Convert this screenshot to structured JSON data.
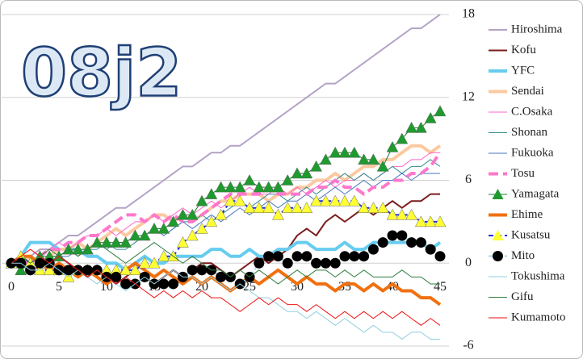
{
  "chart_data": {
    "type": "line",
    "title": "08j2",
    "x": [
      0,
      1,
      2,
      3,
      4,
      5,
      6,
      7,
      8,
      9,
      10,
      11,
      12,
      13,
      14,
      15,
      16,
      17,
      18,
      19,
      20,
      21,
      22,
      23,
      24,
      25,
      26,
      27,
      28,
      29,
      30,
      31,
      32,
      33,
      34,
      35,
      36,
      37,
      38,
      39,
      40,
      41,
      42,
      43,
      44,
      45
    ],
    "xlim": [
      0,
      45
    ],
    "xticks": [
      0,
      5,
      10,
      15,
      20,
      25,
      30,
      35,
      40,
      45
    ],
    "ylim": [
      -6,
      18
    ],
    "yticks": [
      -6,
      0,
      6,
      12,
      18
    ],
    "grid": true,
    "legend": "right",
    "series": [
      {
        "name": "Hiroshima",
        "color": "#b3a2c7",
        "width": 2,
        "values": [
          0,
          0,
          0.5,
          1,
          1,
          1.5,
          2,
          2,
          2.5,
          3,
          3.5,
          4,
          4,
          4.5,
          5,
          5.5,
          6,
          6.5,
          7,
          7,
          7.5,
          8,
          8,
          8.5,
          8.5,
          9,
          9.5,
          10,
          10.5,
          11,
          11.5,
          12,
          12.5,
          13,
          13,
          13.5,
          14,
          14.5,
          15,
          15.5,
          16,
          16.5,
          17,
          17,
          17.5,
          18
        ]
      },
      {
        "name": "Kofu",
        "color": "#7b1c1c",
        "width": 2,
        "values": [
          0,
          0.5,
          0,
          -0.5,
          0,
          0.5,
          0,
          -0.5,
          -1,
          -0.5,
          -1,
          -1.5,
          -1,
          -0.5,
          -1,
          -1.5,
          -1,
          -0.5,
          -1,
          -0.5,
          0,
          0,
          -0.5,
          -1,
          -0.5,
          0,
          0.5,
          0,
          0.5,
          1,
          2,
          2.5,
          2,
          3,
          3.5,
          3,
          3.5,
          4,
          3.5,
          4,
          4.5,
          4,
          4.5,
          4.5,
          5,
          5
        ]
      },
      {
        "name": "YFC",
        "color": "#66ccf0",
        "width": 4,
        "values": [
          0,
          0.5,
          1.5,
          1.5,
          1.5,
          1,
          1,
          1,
          0.5,
          0.5,
          0,
          0,
          -0.5,
          0,
          0.5,
          0,
          0,
          0.5,
          0.5,
          0.5,
          0.5,
          1,
          1,
          0.5,
          0.5,
          1,
          0.5,
          0.5,
          1,
          1,
          1.5,
          1.5,
          1,
          1,
          1,
          1.5,
          1,
          1,
          1.5,
          1.5,
          1.5,
          1.5,
          1.5,
          1.5,
          1,
          1.5
        ]
      },
      {
        "name": "Sendai",
        "color": "#fcc9a0",
        "width": 4,
        "values": [
          0,
          0,
          0.5,
          0,
          0.5,
          1,
          1,
          1.5,
          1,
          1.5,
          2,
          2.5,
          2,
          2.5,
          3,
          3.5,
          3.5,
          3,
          3.5,
          3,
          3.5,
          4,
          4.5,
          4.5,
          5,
          5,
          5,
          4.5,
          5,
          5,
          5.5,
          5.5,
          6,
          6,
          6.5,
          6,
          6.5,
          7,
          7,
          7.5,
          7.5,
          8,
          8.5,
          8.5,
          8,
          8.5
        ]
      },
      {
        "name": "C.Osaka",
        "color": "#ff66cc",
        "width": 1,
        "values": [
          0,
          0.5,
          1,
          0.5,
          1,
          1.5,
          1,
          1.5,
          2,
          2,
          2.5,
          2,
          2.5,
          3,
          3,
          3.5,
          3,
          3.5,
          4,
          3.5,
          4,
          4.5,
          4,
          4.5,
          5,
          5.5,
          5,
          5,
          5.5,
          5,
          5.5,
          5,
          5.5,
          6,
          5.5,
          6,
          6,
          6.5,
          6,
          6.5,
          7,
          7,
          7.5,
          7.5,
          8,
          8
        ]
      },
      {
        "name": "Shonan",
        "color": "#2e8b8b",
        "width": 1,
        "values": [
          0,
          0,
          -0.5,
          0,
          0.5,
          0.5,
          1,
          0.5,
          1,
          1,
          1.5,
          1,
          1,
          1.5,
          2,
          2.5,
          2,
          2.5,
          3,
          3,
          3.5,
          3,
          3.5,
          4,
          4.5,
          4,
          4.5,
          5,
          5,
          4.5,
          5,
          5.5,
          5,
          5.5,
          6,
          6.5,
          6,
          6.5,
          6,
          6.5,
          7,
          6.5,
          7,
          7,
          7.5,
          7
        ]
      },
      {
        "name": "Fukuoka",
        "color": "#4a76c0",
        "width": 1,
        "values": [
          0,
          -0.5,
          0,
          0.5,
          0,
          0.5,
          0.5,
          1,
          1,
          1.5,
          1,
          1.5,
          1.5,
          2,
          2,
          2.5,
          2,
          2.5,
          3,
          2.5,
          3,
          3.5,
          3,
          3.5,
          4,
          3.5,
          4,
          4.5,
          4,
          4.5,
          4.5,
          5,
          4.5,
          5,
          5.5,
          5,
          5.5,
          6,
          5.5,
          6,
          6,
          6.5,
          6,
          6.5,
          6.5,
          6.5
        ]
      },
      {
        "name": "Tosu",
        "color": "#ff77cc",
        "width": 4,
        "dash": "12 6",
        "values": [
          0,
          0,
          0,
          0.5,
          1,
          1,
          1.5,
          1.5,
          2,
          2,
          2.5,
          3,
          3.5,
          3.5,
          3,
          3.5,
          3,
          3.5,
          3,
          3,
          3.5,
          4,
          4.5,
          5,
          5,
          5,
          5,
          5.5,
          5,
          5,
          5,
          5,
          5.5,
          5.5,
          6,
          5.5,
          5.5,
          5,
          5.5,
          5.5,
          6,
          6,
          6.5,
          6.5,
          7,
          8
        ]
      },
      {
        "name": "Yamagata",
        "color": "#1e7a2e",
        "width": 1,
        "marker": "triangle",
        "marker_color": "#1e9a2e",
        "values": [
          0,
          -0.5,
          0,
          0.5,
          0.5,
          0.5,
          1,
          1,
          1,
          1.5,
          1.5,
          1.5,
          1.5,
          2,
          2,
          2.5,
          2.5,
          3,
          3.5,
          3.5,
          4.5,
          5,
          5.5,
          5.5,
          5.5,
          6,
          5.5,
          5.5,
          5.5,
          6,
          6.5,
          6.5,
          7,
          7.5,
          8,
          8,
          8,
          7.5,
          7.5,
          7,
          8.4,
          9,
          9.8,
          9.8,
          10.5,
          11
        ]
      },
      {
        "name": "Ehime",
        "color": "#f07010",
        "width": 4,
        "values": [
          0,
          0.5,
          0.5,
          0,
          -0.5,
          0,
          -0.5,
          -1,
          -0.5,
          -1,
          -1.5,
          -1,
          -0.5,
          0,
          -0.5,
          -1,
          -0.5,
          -1,
          -1.5,
          -1,
          -1.5,
          -1,
          -1.5,
          -2,
          -1.5,
          -1,
          -1.5,
          -1,
          -0.5,
          -1,
          -1.5,
          -1,
          -1.5,
          -1.5,
          -2,
          -1.5,
          -1.5,
          -2,
          -1.5,
          -2,
          -1.5,
          -2,
          -2,
          -2.5,
          -2.5,
          -3
        ]
      },
      {
        "name": "Kusatsu",
        "color": "#1a2ee0",
        "width": 2,
        "dash": "6 4",
        "marker": "triangle",
        "marker_color": "#ffff33",
        "values": [
          0,
          0.5,
          0,
          -0.5,
          -0.5,
          -0.5,
          -1,
          -0.5,
          -0.5,
          -0.5,
          -0.5,
          -0.5,
          -0.5,
          -0.5,
          0,
          0,
          0.5,
          0.5,
          1.5,
          2,
          2.5,
          3,
          3.5,
          4.5,
          4.5,
          4,
          4,
          4,
          3.5,
          4,
          4,
          4,
          4.5,
          4.5,
          4.5,
          4.5,
          4.5,
          4,
          4,
          4,
          3.5,
          3.5,
          3.5,
          3,
          3,
          3
        ]
      },
      {
        "name": "Mito",
        "color": "#a0d8ef",
        "width": 2,
        "dash": "6 4",
        "marker": "circle",
        "marker_color": "#000000",
        "values": [
          0,
          0,
          -0.5,
          0,
          0,
          -0.5,
          -0.5,
          -0.5,
          -0.5,
          -0.5,
          -1,
          -1,
          -1.5,
          -1.5,
          -1,
          -1.5,
          -1.5,
          -1.5,
          -1,
          -0.5,
          -0.5,
          -0.5,
          -1,
          -1,
          -1.5,
          -1,
          0,
          0.5,
          0.5,
          0,
          0.5,
          0.5,
          0,
          0,
          0,
          0.5,
          0.5,
          0.5,
          1,
          1.5,
          2,
          2,
          1.5,
          1.5,
          1,
          0.5
        ]
      },
      {
        "name": "Tokushima",
        "color": "#8fcfdf",
        "width": 1,
        "values": [
          0,
          0,
          -0.5,
          -0.5,
          0,
          -0.5,
          -1,
          -0.5,
          -1,
          -1.5,
          -1,
          -1.5,
          -2,
          -1.5,
          -1,
          -1.5,
          -1,
          -0.5,
          -1,
          -1,
          -1.5,
          -1,
          -1.5,
          -2,
          -1.5,
          -2,
          -2.5,
          -2.5,
          -3,
          -3.5,
          -3.5,
          -4,
          -3.5,
          -4,
          -4.5,
          -4,
          -4.5,
          -5,
          -4.5,
          -5,
          -5,
          -5.5,
          -5,
          -5,
          -5.5,
          -5.5
        ]
      },
      {
        "name": "Gifu",
        "color": "#2e7d3e",
        "width": 1,
        "values": [
          0,
          0.5,
          0,
          0.5,
          1,
          0.5,
          1,
          0.5,
          1,
          1.5,
          1,
          0.5,
          0,
          0.5,
          1,
          1.5,
          1,
          0.5,
          0,
          0.5,
          0,
          -0.5,
          -0.5,
          -1,
          -0.5,
          -1,
          -0.5,
          -1,
          -1.5,
          -1,
          -0.5,
          -1,
          -0.5,
          -0.5,
          -1,
          -0.5,
          -1,
          -0.5,
          -1,
          -1,
          -1,
          -0.5,
          -1,
          -1,
          -1.5,
          -1.5
        ]
      },
      {
        "name": "Kumamoto",
        "color": "#ee1111",
        "width": 1,
        "values": [
          0,
          0.5,
          1,
          0.5,
          0,
          0.5,
          0,
          -0.5,
          -1,
          -0.5,
          -1,
          -1.5,
          -1,
          -1.5,
          -2,
          -2.5,
          -2,
          -2.5,
          -2,
          -2.5,
          -2,
          -2.5,
          -2.5,
          -3,
          -3.5,
          -3,
          -2.5,
          -3,
          -2.5,
          -3,
          -3,
          -3.5,
          -3,
          -3.5,
          -4,
          -3.5,
          -4,
          -3.5,
          -4,
          -3.5,
          -4,
          -3.5,
          -4,
          -4.5,
          -4,
          -4.5
        ]
      }
    ]
  }
}
